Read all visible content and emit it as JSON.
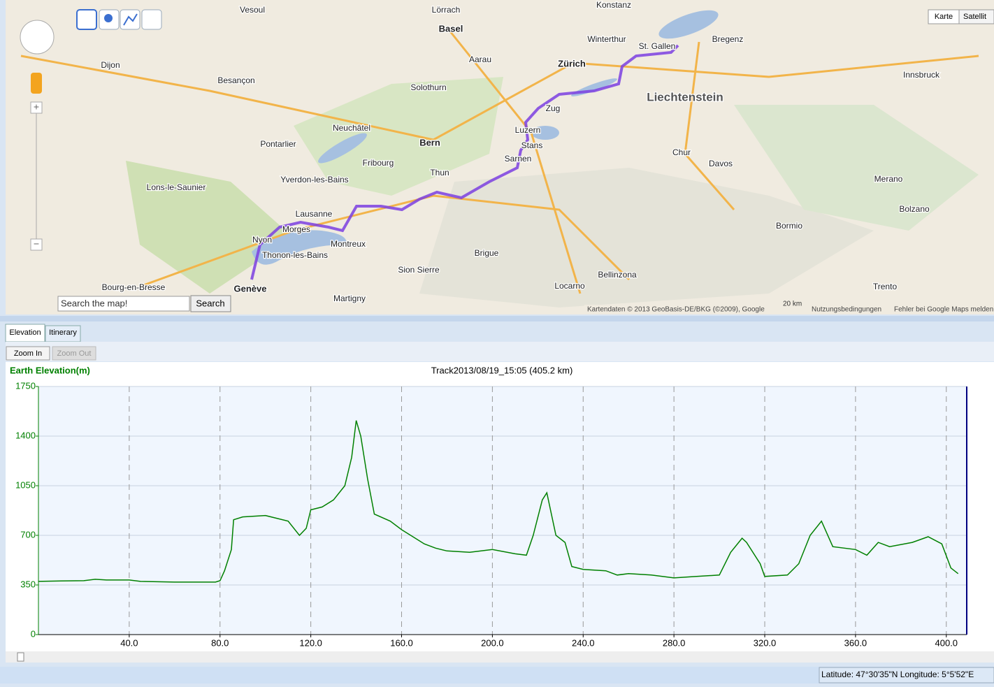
{
  "map": {
    "map_type_buttons": [
      "Karte",
      "Satellit"
    ],
    "search_placeholder": "Search the map!",
    "search_button": "Search",
    "labels": [
      "Basel",
      "Zürich",
      "Bern",
      "Luzern",
      "Lausanne",
      "Genève",
      "Thun",
      "Fribourg",
      "Neuchâtel",
      "Besançon",
      "Dijon",
      "Liechtenstein",
      "St. Gallen",
      "Zug",
      "Chur",
      "Davos",
      "Locarno",
      "Bellinzona",
      "Montreux",
      "Nyon",
      "Morges",
      "Sion Sierre",
      "Martigny",
      "Vesoul",
      "Lörrach",
      "Winterthur",
      "Konstanz",
      "Bregenz",
      "Innsbruck",
      "Bolzano",
      "Merano",
      "Trento",
      "Bormio",
      "Bourg-en-Bresse",
      "Lons-le-Saunier",
      "Pontarlier",
      "Yverdon-les-Bains",
      "Solothurn",
      "Aarau",
      "Stans",
      "Sarnen",
      "Brigue",
      "Thonon-les-Bains"
    ],
    "copyright": "Kartendaten © 2013 GeoBasis-DE/BKG (©2009), Google",
    "terms": "Nutzungsbedingungen",
    "scale": "20 km",
    "report": "Fehler bei Google Maps melden"
  },
  "tabs": [
    "Elevation",
    "Itinerary"
  ],
  "buttons": [
    "Zoom In",
    "Zoom Out"
  ],
  "status": "Latitude: 47°30'35\"N  Longitude: 5°5'52\"E",
  "chart_data": {
    "type": "line",
    "title": "Track2013/08/19_15:05 (405.2 km)",
    "ylabel": "Earth Elevation(m)",
    "color": "#008000",
    "x": [
      0,
      10,
      20,
      25,
      30,
      40,
      45,
      60,
      78,
      80,
      82,
      85,
      86,
      90,
      100,
      110,
      115,
      118,
      120,
      125,
      130,
      135,
      138,
      140,
      142,
      145,
      148,
      155,
      160,
      165,
      170,
      175,
      180,
      190,
      200,
      210,
      215,
      218,
      222,
      224,
      226,
      228,
      232,
      235,
      240,
      250,
      255,
      260,
      270,
      280,
      290,
      300,
      305,
      310,
      312,
      318,
      320,
      330,
      335,
      340,
      345,
      350,
      360,
      365,
      370,
      375,
      385,
      392,
      398,
      402,
      405.2
    ],
    "values": [
      375,
      378,
      380,
      390,
      385,
      385,
      375,
      370,
      370,
      380,
      450,
      600,
      810,
      830,
      840,
      800,
      700,
      750,
      880,
      900,
      950,
      1050,
      1250,
      1510,
      1400,
      1100,
      850,
      800,
      740,
      690,
      640,
      610,
      590,
      580,
      600,
      570,
      560,
      700,
      950,
      1000,
      850,
      700,
      650,
      480,
      460,
      450,
      420,
      430,
      420,
      400,
      410,
      420,
      580,
      680,
      650,
      500,
      410,
      420,
      500,
      700,
      800,
      620,
      600,
      560,
      650,
      620,
      650,
      690,
      640,
      470,
      430
    ],
    "xlim": [
      0,
      409
    ],
    "ylim": [
      0,
      1750
    ],
    "xticks": [
      {
        "value": 40,
        "label": "40.0"
      },
      {
        "value": 80,
        "label": "80.0"
      },
      {
        "value": 120,
        "label": "120.0"
      },
      {
        "value": 160,
        "label": "160.0"
      },
      {
        "value": 200,
        "label": "200.0"
      },
      {
        "value": 240,
        "label": "240.0"
      },
      {
        "value": 280,
        "label": "280.0"
      },
      {
        "value": 320,
        "label": "320.0"
      },
      {
        "value": 360,
        "label": "360.0"
      },
      {
        "value": 400,
        "label": "400.0"
      }
    ],
    "yticks": [
      0,
      350,
      700,
      1050,
      1400,
      1750
    ],
    "grid": true
  }
}
